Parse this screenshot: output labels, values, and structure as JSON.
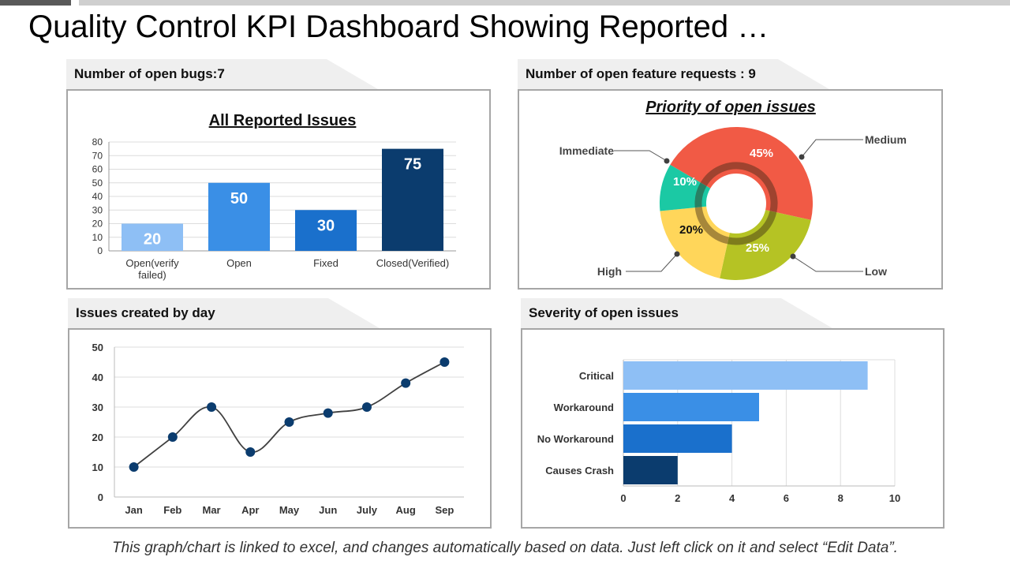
{
  "page": {
    "title": "Quality Control KPI Dashboard Showing Reported …",
    "footer": "This graph/chart is linked to excel, and changes automatically based on data.  Just left click on it and select “Edit Data”."
  },
  "panels": {
    "bugs_tab": "Number of open bugs:7",
    "features_tab": "Number of open feature requests : 9",
    "issues_tab": "Issues created by day",
    "severity_tab": "Severity of open issues"
  },
  "colors": {
    "tab_bg": "#efefef",
    "panel_border": "#a6a6a6",
    "navy": "#0b3c6e",
    "line": "#404040"
  },
  "chart_data": [
    {
      "id": "reported",
      "type": "bar",
      "title": "All Reported Issues",
      "categories": [
        "Open(verify\nfailed)",
        "Open",
        "Fixed",
        "Closed(Verified)"
      ],
      "values": [
        20,
        50,
        30,
        75
      ],
      "colors": [
        "#8ebff5",
        "#3a8fe6",
        "#1a70cc",
        "#0b3c6e"
      ],
      "ylim": [
        0,
        80
      ],
      "yticks": [
        0,
        10,
        20,
        30,
        40,
        50,
        60,
        70,
        80
      ],
      "grid": true,
      "xlabel": "",
      "ylabel": ""
    },
    {
      "id": "priority",
      "type": "pie",
      "donut": true,
      "title": "Priority of open issues",
      "slices": [
        {
          "label": "Medium",
          "value": 45,
          "display": "45%",
          "color": "#f15a45"
        },
        {
          "label": "Low",
          "value": 25,
          "display": "25%",
          "color": "#b5c324"
        },
        {
          "label": "High",
          "value": 20,
          "display": "20%",
          "color": "#ffd65a"
        },
        {
          "label": "Immediate",
          "value": 10,
          "display": "10%",
          "color": "#1bc9a4"
        }
      ]
    },
    {
      "id": "by_day",
      "type": "line",
      "title": "",
      "categories": [
        "Jan",
        "Feb",
        "Mar",
        "Apr",
        "May",
        "Jun",
        "July",
        "Aug",
        "Sep"
      ],
      "values": [
        10,
        20,
        30,
        15,
        25,
        28,
        30,
        38,
        45
      ],
      "ylim": [
        0,
        50
      ],
      "yticks": [
        0,
        10,
        20,
        30,
        40,
        50
      ],
      "grid": true,
      "xlabel": "",
      "ylabel": ""
    },
    {
      "id": "severity",
      "type": "bar",
      "orientation": "horizontal",
      "title": "",
      "categories": [
        "Critical",
        "Workaround",
        "No Workaround",
        "Causes Crash"
      ],
      "values": [
        9,
        5,
        4,
        2
      ],
      "colors": [
        "#8ebff5",
        "#3a8fe6",
        "#1a70cc",
        "#0b3c6e"
      ],
      "xlim": [
        0,
        10
      ],
      "xticks": [
        0,
        2,
        4,
        6,
        8,
        10
      ],
      "grid": true,
      "xlabel": "",
      "ylabel": ""
    }
  ]
}
